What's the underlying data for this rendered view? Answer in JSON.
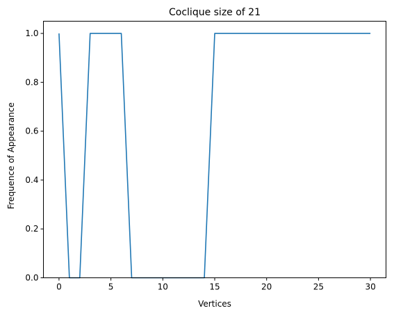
{
  "chart_data": {
    "type": "line",
    "title": "Coclique size of 21",
    "xlabel": "Vertices",
    "ylabel": "Frequence of Appearance",
    "xlim": [
      -1.5,
      31.5
    ],
    "ylim": [
      0.0,
      1.05
    ],
    "xticks": [
      0,
      5,
      10,
      15,
      20,
      25,
      30
    ],
    "xtick_labels": [
      "0",
      "5",
      "10",
      "15",
      "20",
      "25",
      "30"
    ],
    "yticks": [
      0.0,
      0.2,
      0.4,
      0.6,
      0.8,
      1.0
    ],
    "ytick_labels": [
      "0.0",
      "0.2",
      "0.4",
      "0.6",
      "0.8",
      "1.0"
    ],
    "grid": false,
    "series": [
      {
        "color": "#1f77b4",
        "x": [
          0,
          1,
          2,
          3,
          4,
          5,
          6,
          7,
          8,
          9,
          10,
          11,
          12,
          13,
          14,
          15,
          16,
          17,
          18,
          19,
          20,
          21,
          22,
          23,
          24,
          25,
          26,
          27,
          28,
          29,
          30
        ],
        "y": [
          1,
          0,
          0,
          1,
          1,
          1,
          1,
          0,
          0,
          0,
          0,
          0,
          0,
          0,
          0,
          1,
          1,
          1,
          1,
          1,
          1,
          1,
          1,
          1,
          1,
          1,
          1,
          1,
          1,
          1,
          1
        ]
      }
    ]
  }
}
